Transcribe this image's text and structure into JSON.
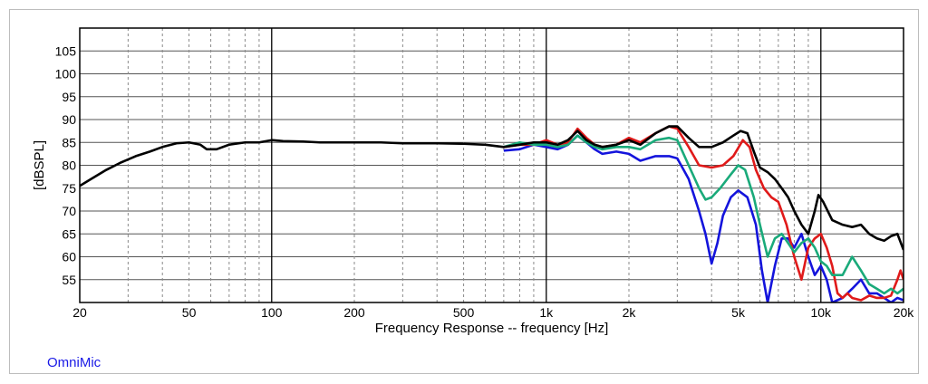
{
  "brand": "OmniMic",
  "chart_data": {
    "type": "line",
    "title": "",
    "xlabel": "Frequency Response -- frequency [Hz]",
    "ylabel": "[dBSPL]",
    "xscale": "log",
    "xlim": [
      20,
      20000
    ],
    "ylim": [
      50,
      110
    ],
    "grid": true,
    "x_ticks": [
      20,
      50,
      100,
      200,
      500,
      1000,
      2000,
      5000,
      10000,
      20000
    ],
    "x_tick_labels": [
      "20",
      "50",
      "100",
      "200",
      "500",
      "1k",
      "2k",
      "5k",
      "10k",
      "20k"
    ],
    "y_ticks": [
      55,
      60,
      65,
      70,
      75,
      80,
      85,
      90,
      95,
      100,
      105
    ],
    "y_tick_labels": [
      "55",
      "60",
      "65",
      "70",
      "75",
      "80",
      "85",
      "90",
      "95",
      "100",
      "105"
    ],
    "series": [
      {
        "color": "#1414dc",
        "points": [
          [
            700,
            83.2
          ],
          [
            800,
            83.5
          ],
          [
            900,
            84.5
          ],
          [
            1000,
            84
          ],
          [
            1100,
            83.5
          ],
          [
            1200,
            84.5
          ],
          [
            1300,
            86.5
          ],
          [
            1400,
            85
          ],
          [
            1500,
            83.5
          ],
          [
            1600,
            82.5
          ],
          [
            1800,
            83
          ],
          [
            2000,
            82.5
          ],
          [
            2200,
            81
          ],
          [
            2500,
            82
          ],
          [
            2800,
            82
          ],
          [
            3000,
            81.5
          ],
          [
            3300,
            77
          ],
          [
            3600,
            70
          ],
          [
            3800,
            65
          ],
          [
            4000,
            58.5
          ],
          [
            4200,
            63
          ],
          [
            4400,
            69
          ],
          [
            4700,
            73
          ],
          [
            5000,
            74.5
          ],
          [
            5400,
            73
          ],
          [
            5800,
            67
          ],
          [
            6100,
            57
          ],
          [
            6400,
            50
          ],
          [
            6800,
            58
          ],
          [
            7200,
            64
          ],
          [
            7600,
            64
          ],
          [
            8000,
            62
          ],
          [
            8500,
            65
          ],
          [
            9000,
            60
          ],
          [
            9500,
            56
          ],
          [
            10000,
            58
          ],
          [
            10500,
            55
          ],
          [
            11000,
            50
          ],
          [
            12000,
            51
          ],
          [
            13000,
            53
          ],
          [
            14000,
            55
          ],
          [
            15000,
            52
          ],
          [
            16000,
            52
          ],
          [
            17000,
            51
          ],
          [
            18000,
            50
          ],
          [
            19000,
            51
          ],
          [
            20000,
            50.5
          ]
        ]
      },
      {
        "color": "#e01a1a",
        "points": [
          [
            700,
            84
          ],
          [
            800,
            84.5
          ],
          [
            900,
            84.5
          ],
          [
            1000,
            85.5
          ],
          [
            1100,
            84.5
          ],
          [
            1200,
            85
          ],
          [
            1300,
            88
          ],
          [
            1400,
            86
          ],
          [
            1500,
            84.5
          ],
          [
            1600,
            84
          ],
          [
            1800,
            84.5
          ],
          [
            2000,
            86
          ],
          [
            2200,
            85
          ],
          [
            2500,
            87
          ],
          [
            2800,
            88.5
          ],
          [
            3000,
            88
          ],
          [
            3300,
            84
          ],
          [
            3600,
            80
          ],
          [
            4000,
            79.5
          ],
          [
            4400,
            80
          ],
          [
            4800,
            82
          ],
          [
            5200,
            85.5
          ],
          [
            5500,
            84
          ],
          [
            5800,
            79
          ],
          [
            6200,
            75
          ],
          [
            6600,
            73
          ],
          [
            7000,
            72
          ],
          [
            7500,
            67
          ],
          [
            8000,
            60
          ],
          [
            8500,
            55
          ],
          [
            9000,
            62
          ],
          [
            9500,
            64
          ],
          [
            10000,
            65
          ],
          [
            10500,
            62
          ],
          [
            11000,
            58
          ],
          [
            11500,
            52
          ],
          [
            12000,
            51
          ],
          [
            12500,
            52
          ],
          [
            13000,
            51
          ],
          [
            14000,
            50.5
          ],
          [
            15000,
            51.5
          ],
          [
            16000,
            51
          ],
          [
            17000,
            51
          ],
          [
            18000,
            51.5
          ],
          [
            19000,
            55
          ],
          [
            19500,
            57
          ],
          [
            20000,
            55
          ]
        ]
      },
      {
        "color": "#1aaa7a",
        "points": [
          [
            700,
            84
          ],
          [
            800,
            85
          ],
          [
            900,
            84.5
          ],
          [
            1000,
            84.5
          ],
          [
            1100,
            84
          ],
          [
            1200,
            84.5
          ],
          [
            1300,
            86.5
          ],
          [
            1400,
            85
          ],
          [
            1500,
            84
          ],
          [
            1600,
            83.5
          ],
          [
            1800,
            84
          ],
          [
            2000,
            84
          ],
          [
            2200,
            83.5
          ],
          [
            2500,
            85.5
          ],
          [
            2800,
            86
          ],
          [
            3000,
            85.5
          ],
          [
            3300,
            80
          ],
          [
            3600,
            75
          ],
          [
            3800,
            72.5
          ],
          [
            4000,
            73
          ],
          [
            4300,
            75
          ],
          [
            4700,
            78
          ],
          [
            5000,
            80
          ],
          [
            5300,
            79
          ],
          [
            5700,
            73
          ],
          [
            6000,
            67
          ],
          [
            6400,
            60
          ],
          [
            6800,
            64
          ],
          [
            7200,
            65
          ],
          [
            7600,
            63
          ],
          [
            8000,
            61
          ],
          [
            8500,
            63
          ],
          [
            9000,
            64
          ],
          [
            9500,
            62
          ],
          [
            10000,
            59
          ],
          [
            10500,
            58
          ],
          [
            11000,
            56
          ],
          [
            12000,
            56
          ],
          [
            13000,
            60
          ],
          [
            14000,
            57
          ],
          [
            15000,
            54
          ],
          [
            16000,
            53
          ],
          [
            17000,
            52
          ],
          [
            18000,
            53
          ],
          [
            19000,
            52
          ],
          [
            20000,
            53
          ]
        ]
      },
      {
        "color": "#000000",
        "points": [
          [
            20,
            75.5
          ],
          [
            22,
            77
          ],
          [
            25,
            79
          ],
          [
            28,
            80.5
          ],
          [
            32,
            82
          ],
          [
            36,
            83
          ],
          [
            40,
            84
          ],
          [
            45,
            84.8
          ],
          [
            50,
            85
          ],
          [
            55,
            84.5
          ],
          [
            58,
            83.5
          ],
          [
            63,
            83.5
          ],
          [
            70,
            84.5
          ],
          [
            80,
            85
          ],
          [
            90,
            85
          ],
          [
            100,
            85.5
          ],
          [
            110,
            85.3
          ],
          [
            130,
            85.2
          ],
          [
            150,
            85
          ],
          [
            200,
            85
          ],
          [
            250,
            85
          ],
          [
            300,
            84.8
          ],
          [
            400,
            84.8
          ],
          [
            500,
            84.7
          ],
          [
            600,
            84.5
          ],
          [
            700,
            84
          ],
          [
            800,
            84.5
          ],
          [
            900,
            85
          ],
          [
            1000,
            85
          ],
          [
            1100,
            84.5
          ],
          [
            1200,
            85.5
          ],
          [
            1300,
            87.5
          ],
          [
            1400,
            85.5
          ],
          [
            1500,
            84.5
          ],
          [
            1600,
            84
          ],
          [
            1800,
            84.5
          ],
          [
            2000,
            85.5
          ],
          [
            2200,
            84.5
          ],
          [
            2500,
            87
          ],
          [
            2800,
            88.5
          ],
          [
            3000,
            88.5
          ],
          [
            3300,
            86
          ],
          [
            3600,
            84
          ],
          [
            4000,
            84
          ],
          [
            4400,
            85
          ],
          [
            4800,
            86.5
          ],
          [
            5100,
            87.5
          ],
          [
            5400,
            87
          ],
          [
            5700,
            83
          ],
          [
            6000,
            79.5
          ],
          [
            6400,
            78.5
          ],
          [
            6800,
            77
          ],
          [
            7200,
            75
          ],
          [
            7600,
            73
          ],
          [
            8000,
            70
          ],
          [
            8500,
            67
          ],
          [
            9000,
            65
          ],
          [
            9500,
            70
          ],
          [
            9800,
            73.5
          ],
          [
            10200,
            72
          ],
          [
            11000,
            68
          ],
          [
            12000,
            67
          ],
          [
            13000,
            66.5
          ],
          [
            14000,
            67
          ],
          [
            15000,
            65
          ],
          [
            16000,
            64
          ],
          [
            17000,
            63.5
          ],
          [
            18000,
            64.5
          ],
          [
            19000,
            65
          ],
          [
            20000,
            61.5
          ]
        ]
      }
    ]
  }
}
